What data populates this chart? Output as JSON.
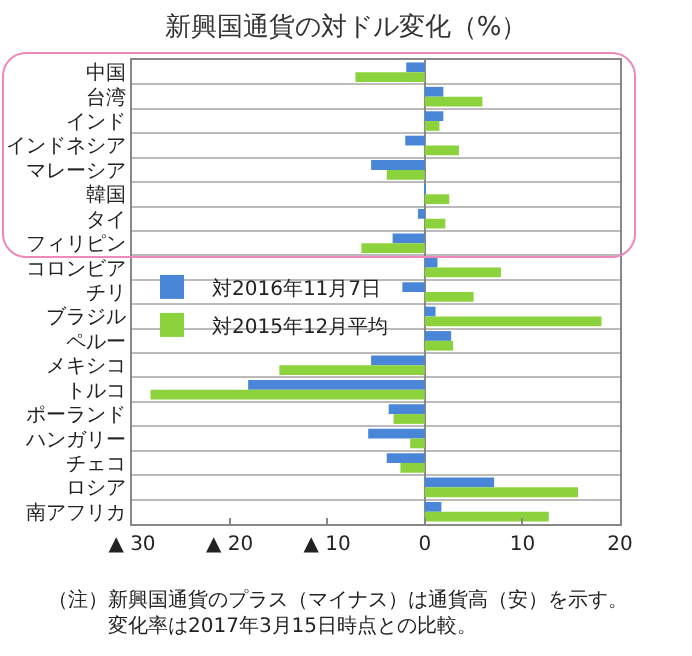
{
  "chart_data": {
    "type": "bar",
    "orientation": "horizontal",
    "title": "新興国通貨の対ドル変化（%）",
    "categories": [
      "中国",
      "台湾",
      "インド",
      "インドネシア",
      "マレーシア",
      "韓国",
      "タイ",
      "フィリピン",
      "コロンビア",
      "チリ",
      "ブラジル",
      "ペルー",
      "メキシコ",
      "トルコ",
      "ポーランド",
      "ハンガリー",
      "チェコ",
      "ロシア",
      "南アフリカ"
    ],
    "series": [
      {
        "name": "対2016年11月7日",
        "color": "#4a86d8",
        "values": [
          -1.9,
          1.9,
          1.9,
          -2.0,
          -5.5,
          0.1,
          -0.7,
          -3.3,
          1.3,
          -2.3,
          1.1,
          2.7,
          -5.5,
          -18.1,
          -3.7,
          -5.8,
          -3.9,
          7.1,
          1.7
        ]
      },
      {
        "name": "対2015年12月平均",
        "color": "#8cd23c",
        "values": [
          -7.1,
          5.9,
          1.5,
          3.5,
          -3.9,
          2.5,
          2.1,
          -6.5,
          7.8,
          5.0,
          18.1,
          2.9,
          -14.9,
          -28.1,
          -3.2,
          -1.5,
          -2.5,
          15.7,
          12.7
        ]
      }
    ],
    "xlim": [
      -30,
      20
    ],
    "xticks": [
      {
        "value": -30,
        "label": "▲ 30"
      },
      {
        "value": -20,
        "label": "▲ 20"
      },
      {
        "value": -10,
        "label": "▲ 10"
      },
      0,
      10,
      20
    ],
    "grid": "y",
    "legend": "left",
    "annotations": [
      "（注）新興国通貨のプラス（マイナス）は通貨高（安）を示す。",
      "　　　変化率は2017年3月15日時点との比較。"
    ]
  }
}
